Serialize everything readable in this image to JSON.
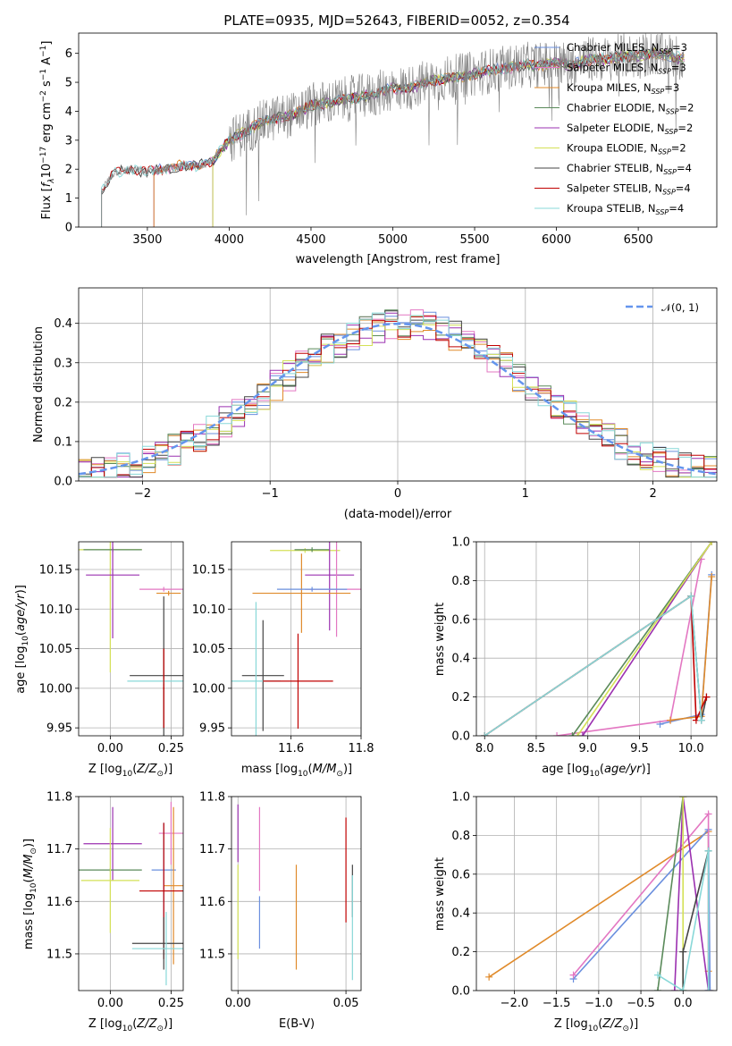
{
  "figure_title": "PLATE=0935, MJD=52643, FIBERID=0052, z=0.354",
  "colors": {
    "chabrier_miles": "#6a8fde",
    "salpeter_miles": "#e377c2",
    "kroupa_miles": "#e08a2a",
    "chabrier_elodie": "#5a8a5a",
    "salpeter_elodie": "#9b30b0",
    "kroupa_elodie": "#d4e157",
    "chabrier_stelib": "#444444",
    "salpeter_stelib": "#c00000",
    "kroupa_stelib": "#88d8d8",
    "normal": "#6495ed",
    "spectrum": "#808080"
  },
  "chart_data": [
    {
      "id": "spectrum",
      "type": "line",
      "xlabel": "wavelength [Angstrom, rest frame]",
      "ylabel": "Flux [f_λ 10^-17 erg cm^-2 s^-1 A^-1]",
      "xlim": [
        3080,
        6980
      ],
      "ylim": [
        0,
        6.7
      ],
      "xticks": [
        3500,
        4000,
        4500,
        5000,
        5500,
        6000,
        6500
      ],
      "yticks": [
        0,
        1,
        2,
        3,
        4,
        5,
        6
      ],
      "legend_position": "upper right",
      "legend": [
        {
          "key": "chabrier_miles",
          "main": "Chabrier MILES, N",
          "sub": "SSP",
          "tail": "=3"
        },
        {
          "key": "salpeter_miles",
          "main": "Salpeter MILES, N",
          "sub": "SSP",
          "tail": "=3"
        },
        {
          "key": "kroupa_miles",
          "main": "Kroupa MILES, N",
          "sub": "SSP",
          "tail": "=3"
        },
        {
          "key": "chabrier_elodie",
          "main": "Chabrier ELODIE, N",
          "sub": "SSP",
          "tail": "=2"
        },
        {
          "key": "salpeter_elodie",
          "main": "Salpeter ELODIE, N",
          "sub": "SSP",
          "tail": "=2"
        },
        {
          "key": "kroupa_elodie",
          "main": "Kroupa ELODIE, N",
          "sub": "SSP",
          "tail": "=2"
        },
        {
          "key": "chabrier_stelib",
          "main": "Chabrier STELIB, N",
          "sub": "SSP",
          "tail": "=4"
        },
        {
          "key": "salpeter_stelib",
          "main": "Salpeter STELIB, N",
          "sub": "SSP",
          "tail": "=4"
        },
        {
          "key": "kroupa_stelib",
          "main": "Kroupa STELIB, N",
          "sub": "SSP",
          "tail": "=4"
        }
      ],
      "data_x": [
        3220,
        3300,
        3400,
        3500,
        3600,
        3700,
        3800,
        3900,
        4000,
        4100,
        4200,
        4300,
        4400,
        4500,
        4600,
        4700,
        4800,
        4900,
        5000,
        5100,
        5200,
        5300,
        5400,
        5500,
        5600,
        5700,
        5800,
        5900,
        6000,
        6100,
        6200,
        6300,
        6400,
        6500,
        6600,
        6700,
        6780
      ],
      "data_y": [
        1.3,
        1.9,
        2.0,
        1.9,
        2.0,
        2.1,
        2.1,
        2.3,
        3.0,
        3.3,
        3.6,
        3.8,
        3.9,
        4.2,
        4.3,
        4.4,
        4.5,
        4.6,
        4.8,
        4.8,
        5.0,
        5.1,
        5.2,
        5.3,
        5.4,
        5.5,
        5.6,
        5.6,
        5.7,
        5.6,
        5.8,
        5.8,
        5.9,
        5.9,
        6.0,
        5.9,
        5.8
      ]
    },
    {
      "id": "residuals",
      "type": "step",
      "xlabel": "(data-model)/error",
      "ylabel": "Normed distribution",
      "xlim": [
        -2.5,
        2.5
      ],
      "ylim": [
        0,
        0.49
      ],
      "xticks": [
        -2,
        -1,
        0,
        1,
        2
      ],
      "yticks": [
        0.0,
        0.1,
        0.2,
        0.3,
        0.4
      ],
      "grid": true,
      "legend_position": "upper right",
      "legend_label": "N(0,1)",
      "bin_width": 0.1
    },
    {
      "id": "age_vs_Z",
      "type": "errorbar",
      "xlabel": "Z [log10(Z/Z_sun)]",
      "ylabel": "age [log10(age/yr)]",
      "xlim": [
        -0.13,
        0.3
      ],
      "ylim": [
        9.94,
        10.185
      ],
      "xticks": [
        0.0,
        0.25
      ],
      "yticks": [
        9.95,
        10.0,
        10.05,
        10.1,
        10.15
      ],
      "grid": true,
      "points": [
        {
          "key": "kroupa_elodie",
          "x": 0.0,
          "y": 10.175,
          "xerr": 0.13,
          "yerr": 0.155
        },
        {
          "key": "chabrier_elodie",
          "x": 0.01,
          "y": 10.175,
          "xerr": 0.12,
          "yerr": 0.003
        },
        {
          "key": "salpeter_elodie",
          "x": 0.01,
          "y": 10.143,
          "xerr": 0.11,
          "yerr": 0.08
        },
        {
          "key": "salpeter_miles",
          "x": 0.22,
          "y": 10.125,
          "xerr": 0.1,
          "yerr": 0.003
        },
        {
          "key": "kroupa_miles",
          "x": 0.24,
          "y": 10.12,
          "xerr": 0.05,
          "yerr": 0.003
        },
        {
          "key": "chabrier_stelib",
          "x": 0.22,
          "y": 10.016,
          "xerr": 0.14,
          "yerr": 0.1
        },
        {
          "key": "kroupa_stelib",
          "x": 0.22,
          "y": 10.009,
          "xerr": 0.15,
          "yerr": 0.003
        },
        {
          "key": "salpeter_stelib",
          "x": 0.22,
          "y": 10.0,
          "xerr": 0.003,
          "yerr": 0.05
        }
      ]
    },
    {
      "id": "age_vs_mass",
      "type": "errorbar",
      "xlabel": "mass [log10(M/M_sun)]",
      "ylabel": "",
      "xlim": [
        11.43,
        11.8
      ],
      "ylim": [
        9.94,
        10.185
      ],
      "xticks": [
        11.6,
        11.8
      ],
      "yticks": [
        9.95,
        10.0,
        10.05,
        10.1,
        10.15
      ],
      "grid": true,
      "points": [
        {
          "key": "kroupa_elodie",
          "x": 11.64,
          "y": 10.174,
          "xerr": 0.1,
          "yerr": 0.003
        },
        {
          "key": "chabrier_elodie",
          "x": 11.66,
          "y": 10.175,
          "xerr": 0.05,
          "yerr": 0.003
        },
        {
          "key": "salpeter_elodie",
          "x": 11.71,
          "y": 10.143,
          "xerr": 0.07,
          "yerr": 0.07
        },
        {
          "key": "salpeter_miles",
          "x": 11.73,
          "y": 10.125,
          "xerr": 0.09,
          "yerr": 0.06
        },
        {
          "key": "kroupa_miles",
          "x": 11.63,
          "y": 10.12,
          "xerr": 0.14,
          "yerr": 0.05
        },
        {
          "key": "chabrier_miles",
          "x": 11.66,
          "y": 10.125,
          "xerr": 0.1,
          "yerr": 0.003
        },
        {
          "key": "chabrier_stelib",
          "x": 11.52,
          "y": 10.016,
          "xerr": 0.06,
          "yerr": 0.07
        },
        {
          "key": "kroupa_stelib",
          "x": 11.5,
          "y": 10.009,
          "xerr": 0.07,
          "yerr": 0.1
        },
        {
          "key": "salpeter_stelib",
          "x": 11.62,
          "y": 10.009,
          "xerr": 0.1,
          "yerr": 0.06
        }
      ]
    },
    {
      "id": "massweight_vs_age",
      "type": "line",
      "xlabel": "age [log10(age/yr)]",
      "ylabel": "mass weight",
      "xlim": [
        7.92,
        10.25
      ],
      "ylim": [
        0.0,
        1.0
      ],
      "xticks": [
        8.0,
        8.5,
        9.0,
        9.5,
        10.0
      ],
      "yticks": [
        0.0,
        0.2,
        0.4,
        0.6,
        0.8,
        1.0
      ],
      "grid": true,
      "series": [
        {
          "key": "chabrier_miles",
          "x": [
            9.7,
            10.1,
            10.2
          ],
          "y": [
            0.06,
            0.11,
            0.83
          ]
        },
        {
          "key": "salpeter_miles",
          "x": [
            8.7,
            9.8,
            10.1
          ],
          "y": [
            0.0,
            0.08,
            0.91
          ]
        },
        {
          "key": "kroupa_miles",
          "x": [
            9.8,
            10.1,
            10.2
          ],
          "y": [
            0.08,
            0.1,
            0.82
          ]
        },
        {
          "key": "chabrier_elodie",
          "x": [
            8.85,
            10.2
          ],
          "y": [
            0.0,
            1.0
          ]
        },
        {
          "key": "salpeter_elodie",
          "x": [
            8.95,
            10.2
          ],
          "y": [
            0.0,
            1.0
          ]
        },
        {
          "key": "kroupa_elodie",
          "x": [
            8.9,
            10.2
          ],
          "y": [
            0.0,
            1.0
          ]
        },
        {
          "key": "chabrier_stelib",
          "x": [
            8.0,
            10.0,
            10.1,
            10.15
          ],
          "y": [
            0.0,
            0.72,
            0.08,
            0.2
          ]
        },
        {
          "key": "salpeter_stelib",
          "x": [
            8.0,
            10.0,
            10.05,
            10.15
          ],
          "y": [
            0.0,
            0.72,
            0.08,
            0.2
          ]
        },
        {
          "key": "kroupa_stelib",
          "x": [
            8.0,
            10.0,
            10.1
          ],
          "y": [
            0.0,
            0.72,
            0.08
          ]
        }
      ]
    },
    {
      "id": "mass_vs_Z",
      "type": "errorbar",
      "xlabel": "Z [log10(Z/Z_sun)]",
      "ylabel": "mass [log10(M/M_sun)]",
      "xlim": [
        -0.13,
        0.3
      ],
      "ylim": [
        11.43,
        11.8
      ],
      "xticks": [
        0.0,
        0.25
      ],
      "yticks": [
        11.5,
        11.6,
        11.7,
        11.8
      ],
      "grid": true,
      "points": [
        {
          "key": "salpeter_elodie",
          "x": 0.01,
          "y": 11.71,
          "xerr": 0.12,
          "yerr": 0.07
        },
        {
          "key": "chabrier_elodie",
          "x": 0.0,
          "y": 11.66,
          "xerr": 0.13,
          "yerr": 0.003
        },
        {
          "key": "kroupa_elodie",
          "x": 0.0,
          "y": 11.64,
          "xerr": 0.12,
          "yerr": 0.1
        },
        {
          "key": "salpeter_miles",
          "x": 0.25,
          "y": 11.73,
          "xerr": 0.05,
          "yerr": 0.06
        },
        {
          "key": "chabrier_miles",
          "x": 0.22,
          "y": 11.66,
          "xerr": 0.05,
          "yerr": 0.09
        },
        {
          "key": "kroupa_miles",
          "x": 0.26,
          "y": 11.63,
          "xerr": 0.04,
          "yerr": 0.15
        },
        {
          "key": "salpeter_stelib",
          "x": 0.22,
          "y": 11.62,
          "xerr": 0.1,
          "yerr": 0.13
        },
        {
          "key": "chabrier_stelib",
          "x": 0.22,
          "y": 11.52,
          "xerr": 0.13,
          "yerr": 0.05
        },
        {
          "key": "kroupa_stelib",
          "x": 0.23,
          "y": 11.51,
          "xerr": 0.14,
          "yerr": 0.07
        }
      ]
    },
    {
      "id": "mass_vs_ebv",
      "type": "errorbar",
      "xlabel": "E(B-V)",
      "ylabel": "",
      "xlim": [
        -0.003,
        0.057
      ],
      "ylim": [
        11.43,
        11.8
      ],
      "xticks": [
        0.0,
        0.05
      ],
      "yticks": [
        11.5,
        11.6,
        11.7,
        11.8
      ],
      "grid": true,
      "points": [
        {
          "key": "salpeter_elodie",
          "x": 0.0,
          "y": 11.73,
          "xerr": 0.0,
          "yerr": 0.055
        },
        {
          "key": "kroupa_elodie",
          "x": 0.0,
          "y": 11.58,
          "xerr": 0.0,
          "yerr": 0.09
        },
        {
          "key": "chabrier_miles",
          "x": 0.01,
          "y": 11.56,
          "xerr": 0.0,
          "yerr": 0.05
        },
        {
          "key": "salpeter_miles",
          "x": 0.01,
          "y": 11.7,
          "xerr": 0.0,
          "yerr": 0.08
        },
        {
          "key": "kroupa_miles",
          "x": 0.027,
          "y": 11.57,
          "xerr": 0.0,
          "yerr": 0.1
        },
        {
          "key": "salpeter_stelib",
          "x": 0.05,
          "y": 11.66,
          "xerr": 0.0,
          "yerr": 0.1
        },
        {
          "key": "chabrier_stelib",
          "x": 0.053,
          "y": 11.62,
          "xerr": 0.0,
          "yerr": 0.05
        },
        {
          "key": "kroupa_stelib",
          "x": 0.053,
          "y": 11.55,
          "xerr": 0.0,
          "yerr": 0.1
        }
      ]
    },
    {
      "id": "massweight_vs_Z",
      "type": "line",
      "xlabel": "Z [log10(Z/Z_sun)]",
      "ylabel": "mass weight",
      "xlim": [
        -2.45,
        0.4
      ],
      "ylim": [
        0.0,
        1.0
      ],
      "xticks": [
        -2.0,
        -1.5,
        -1.0,
        -0.5,
        0.0
      ],
      "yticks": [
        0.0,
        0.2,
        0.4,
        0.6,
        0.8,
        1.0
      ],
      "grid": true,
      "series": [
        {
          "key": "kroupa_miles",
          "x": [
            -2.3,
            0.3,
            0.3,
            0.32
          ],
          "y": [
            0.07,
            0.82,
            0.1,
            0.0
          ]
        },
        {
          "key": "chabrier_miles",
          "x": [
            -1.3,
            0.3,
            0.32
          ],
          "y": [
            0.06,
            0.83,
            0.0
          ]
        },
        {
          "key": "salpeter_miles",
          "x": [
            -1.3,
            0.3,
            0.3
          ],
          "y": [
            0.08,
            0.91,
            0.0
          ]
        },
        {
          "key": "salpeter_elodie",
          "x": [
            -0.1,
            0.0,
            0.3
          ],
          "y": [
            0.0,
            1.0,
            0.0
          ]
        },
        {
          "key": "chabrier_elodie",
          "x": [
            -0.3,
            0.0
          ],
          "y": [
            0.0,
            1.0
          ]
        },
        {
          "key": "kroupa_elodie",
          "x": [
            0.0,
            0.0
          ],
          "y": [
            0.0,
            1.0
          ]
        },
        {
          "key": "chabrier_stelib",
          "x": [
            0.0,
            0.0,
            0.3
          ],
          "y": [
            0.0,
            0.2,
            0.72
          ]
        },
        {
          "key": "kroupa_stelib",
          "x": [
            -0.3,
            0.0,
            0.3,
            0.3
          ],
          "y": [
            0.08,
            0.0,
            0.72,
            0.0
          ]
        }
      ]
    }
  ]
}
